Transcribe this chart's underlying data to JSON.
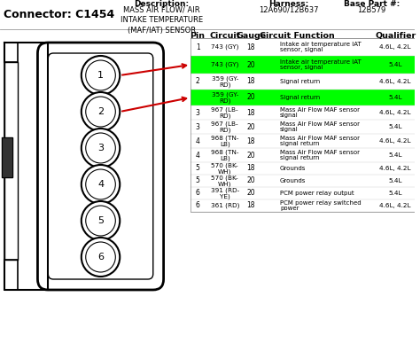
{
  "title_connector": "Connector: C1454",
  "desc_label": "Description:",
  "desc_text": "MASS AIR FLOW/ AIR\nINTAKE TEMPERATURE\n(MAF/IAT) SENSOR",
  "harness_label": "Harness:",
  "harness_text": "12A690/12B637",
  "base_part_label": "Base Part #:",
  "base_part_text": "12B579",
  "col_headers": [
    "Pin",
    "Circuit",
    "Gauge",
    "Circuit Function",
    "Qualifier"
  ],
  "rows": [
    {
      "pin": "1",
      "circuit": "743 (GY)",
      "gauge": "18",
      "function": "Intake air temperature IAT\nsensor, signal",
      "qualifier": "4.6L, 4.2L",
      "highlight": false
    },
    {
      "pin": "",
      "circuit": "743 (GY)",
      "gauge": "20",
      "function": "Intake air temperature IAT\nsensor, signal",
      "qualifier": "5.4L",
      "highlight": true
    },
    {
      "pin": "2",
      "circuit": "359 (GY-\nRD)",
      "gauge": "18",
      "function": "Signal return",
      "qualifier": "4.6L, 4.2L",
      "highlight": false
    },
    {
      "pin": "",
      "circuit": "359 (GY-\nRD)",
      "gauge": "20",
      "function": "Signal return",
      "qualifier": "5.4L",
      "highlight": true
    },
    {
      "pin": "3",
      "circuit": "967 (LB-\nRD)",
      "gauge": "18",
      "function": "Mass Air Flow MAF sensor\nsignal",
      "qualifier": "4.6L, 4.2L",
      "highlight": false
    },
    {
      "pin": "3",
      "circuit": "967 (LB-\nRD)",
      "gauge": "20",
      "function": "Mass Air Flow MAF sensor\nsignal",
      "qualifier": "5.4L",
      "highlight": false
    },
    {
      "pin": "4",
      "circuit": "968 (TN-\nLB)",
      "gauge": "18",
      "function": "Mass Air Flow MAF sensor\nsignal return",
      "qualifier": "4.6L, 4.2L",
      "highlight": false
    },
    {
      "pin": "4",
      "circuit": "968 (TN-\nLB)",
      "gauge": "20",
      "function": "Mass Air Flow MAF sensor\nsignal return",
      "qualifier": "5.4L",
      "highlight": false
    },
    {
      "pin": "5",
      "circuit": "570 (BK-\nWH)",
      "gauge": "18",
      "function": "Grounds",
      "qualifier": "4.6L, 4.2L",
      "highlight": false
    },
    {
      "pin": "5",
      "circuit": "570 (BK-\nWH)",
      "gauge": "20",
      "function": "Grounds",
      "qualifier": "5.4L",
      "highlight": false
    },
    {
      "pin": "6",
      "circuit": "391 (RD-\nYE)",
      "gauge": "20",
      "function": "PCM power relay output",
      "qualifier": "5.4L",
      "highlight": false
    },
    {
      "pin": "6",
      "circuit": "361 (RD)",
      "gauge": "18",
      "function": "PCM power relay switched\npower",
      "qualifier": "4.6L, 4.2L",
      "highlight": false
    }
  ],
  "highlight_color": "#00ff00",
  "bg_color": "#ffffff",
  "arrow_color": "#cc0000",
  "text_color": "#000000"
}
